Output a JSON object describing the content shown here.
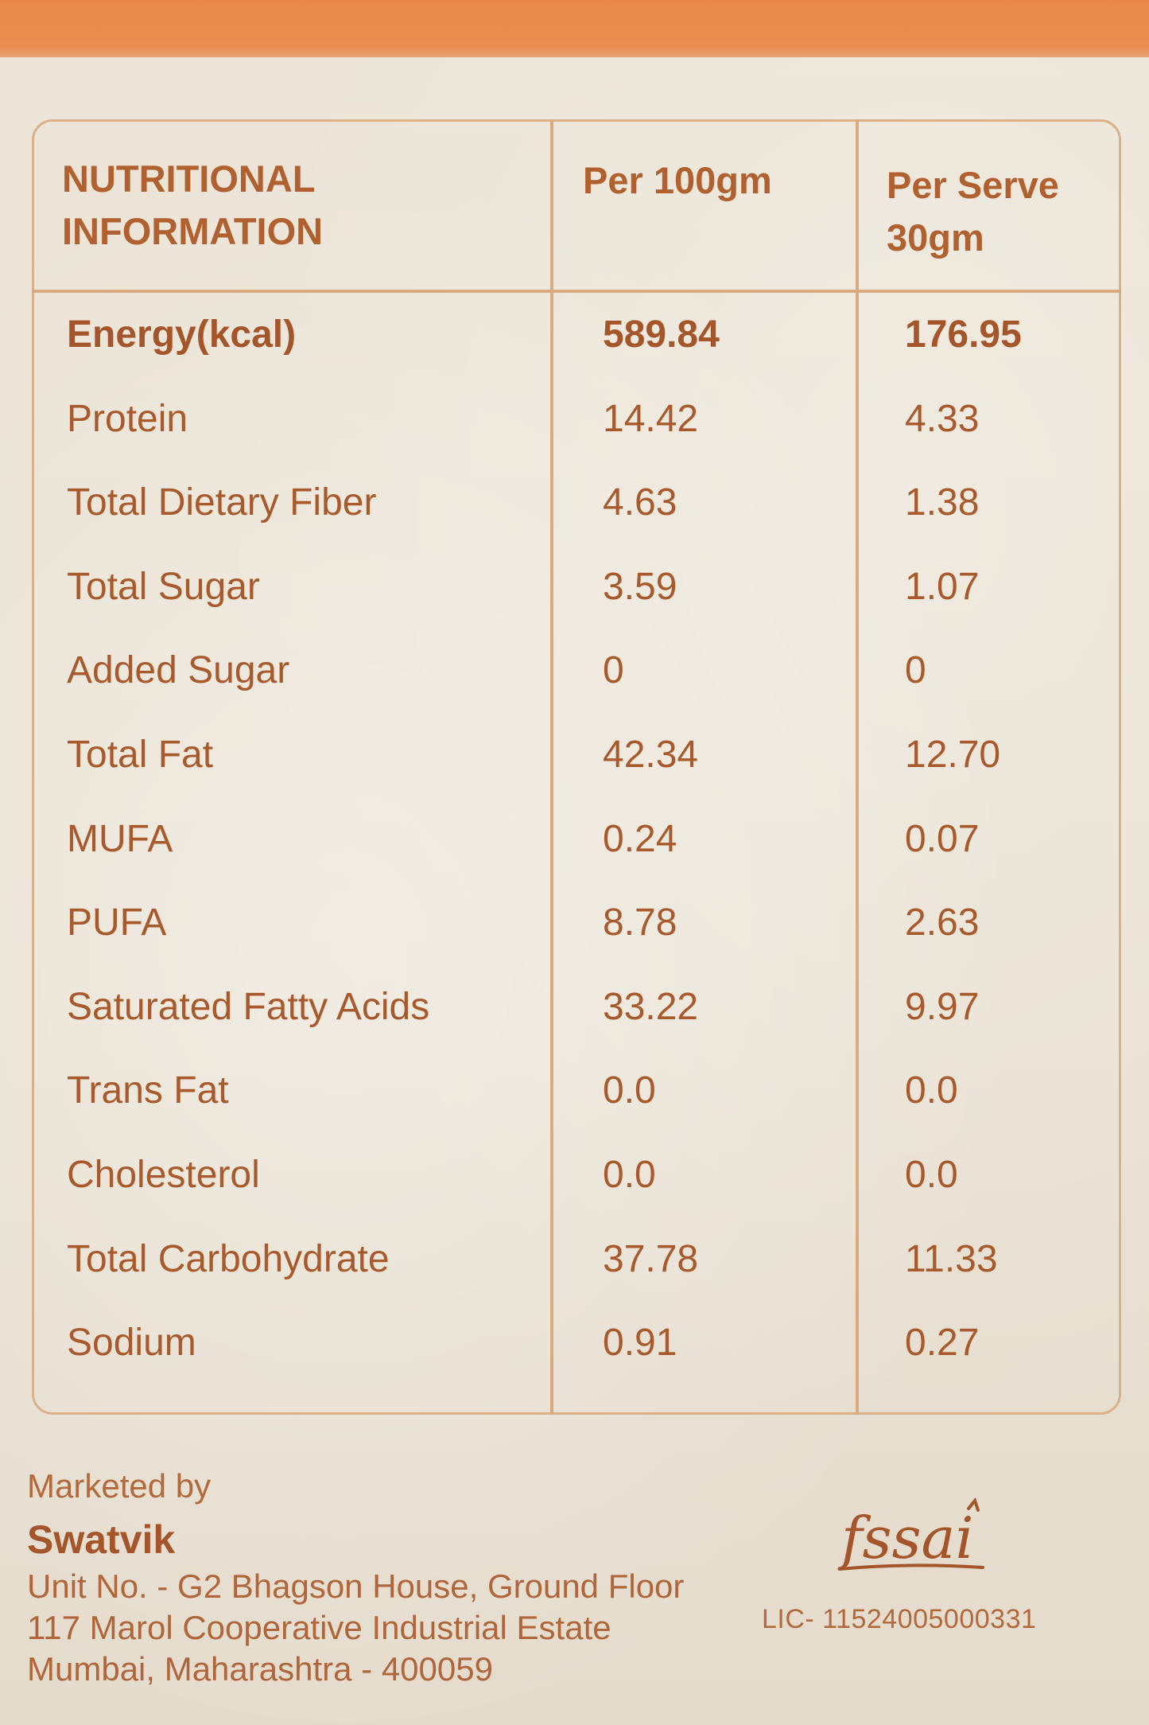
{
  "table": {
    "headers": {
      "title": [
        "NUTRITIONAL",
        "INFORMATION"
      ],
      "col1": "Per 100gm",
      "col2": [
        "Per Serve",
        "30gm"
      ]
    },
    "rows": [
      {
        "name": "Energy(kcal)",
        "per100": "589.84",
        "perServe": "176.95"
      },
      {
        "name": "Protein",
        "per100": "14.42",
        "perServe": "4.33"
      },
      {
        "name": "Total Dietary Fiber",
        "per100": "4.63",
        "perServe": "1.38"
      },
      {
        "name": "Total Sugar",
        "per100": "3.59",
        "perServe": "1.07"
      },
      {
        "name": "Added Sugar",
        "per100": "0",
        "perServe": "0"
      },
      {
        "name": "Total Fat",
        "per100": "42.34",
        "perServe": "12.70"
      },
      {
        "name": "MUFA",
        "per100": "0.24",
        "perServe": "0.07"
      },
      {
        "name": "PUFA",
        "per100": "8.78",
        "perServe": "2.63"
      },
      {
        "name": "Saturated Fatty Acids",
        "per100": "33.22",
        "perServe": "9.97"
      },
      {
        "name": "Trans Fat",
        "per100": "0.0",
        "perServe": "0.0"
      },
      {
        "name": "Cholesterol",
        "per100": "0.0",
        "perServe": "0.0"
      },
      {
        "name": "Total Carbohydrate",
        "per100": "37.78",
        "perServe": "11.33"
      },
      {
        "name": "Sodium",
        "per100": "0.91",
        "perServe": "0.27"
      }
    ]
  },
  "footer": {
    "marketed_by": "Marketed by",
    "brand": "Swatvik",
    "address": [
      "Unit No. - G2 Bhagson House, Ground Floor",
      "117 Marol Cooperative Industrial Estate",
      "Mumbai, Maharashtra - 400059"
    ],
    "fssai_logo_text": "fssai",
    "license": "LIC- 11524005000331"
  },
  "colors": {
    "text": "#a75a2c",
    "border": "#d9a97f",
    "band": "#e8894a",
    "background": "#ebe3d6"
  }
}
